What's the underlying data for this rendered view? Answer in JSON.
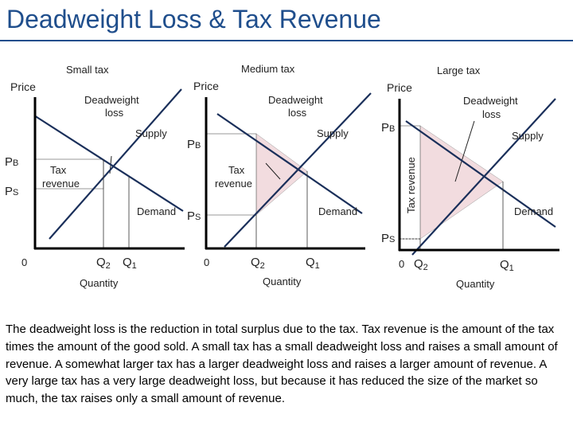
{
  "slide": {
    "title": "Deadweight Loss & Tax Revenue",
    "caption": "The deadweight loss is the reduction in total surplus due to the tax. Tax revenue is the amount of the tax times the amount of the good sold. A small tax has a small deadweight loss and raises a small amount of revenue. A somewhat larger tax has a larger deadweight loss and raises a larger amount of revenue. A very large tax has a very large deadweight loss, but because it has reduced the size of the market so much, the tax raises only a small amount of revenue."
  },
  "panels": {
    "small": {
      "heading": "Small tax",
      "price_label": "Price",
      "dwl_label_1": "Deadweight",
      "dwl_label_2": "loss",
      "supply_label": "Supply",
      "demand_label": "Demand",
      "revenue_label_1": "Tax",
      "revenue_label_2": "revenue",
      "pb": "P",
      "pb_sub": "B",
      "ps": "P",
      "ps_sub": "S",
      "origin": "0",
      "q2": "Q",
      "q2_sub": "2",
      "q1": "Q",
      "q1_sub": "1",
      "quantity_label": "Quantity"
    },
    "medium": {
      "heading": "Medium tax",
      "price_label": "Price",
      "dwl_label_1": "Deadweight",
      "dwl_label_2": "loss",
      "supply_label": "Supply",
      "demand_label": "Demand",
      "revenue_label_1": "Tax",
      "revenue_label_2": "revenue",
      "pb": "P",
      "pb_sub": "B",
      "ps": "P",
      "ps_sub": "S",
      "origin": "0",
      "q2": "Q",
      "q2_sub": "2",
      "q1": "Q",
      "q1_sub": "1",
      "quantity_label": "Quantity"
    },
    "large": {
      "heading": "Large tax",
      "price_label": "Price",
      "dwl_label_1": "Deadweight",
      "dwl_label_2": "loss",
      "supply_label": "Supply",
      "demand_label": "Demand",
      "revenue_label": "Tax revenue",
      "pb": "P",
      "pb_sub": "B",
      "ps": "P",
      "ps_sub": "S",
      "origin": "0",
      "q2": "Q",
      "q2_sub": "2",
      "q1": "Q",
      "q1_sub": "1",
      "quantity_label": "Quantity"
    }
  },
  "colors": {
    "title": "#1f4e8c",
    "deadweight_fill": "#f2dcdf",
    "axis": "#000000",
    "curve": "#1a2f5a"
  }
}
